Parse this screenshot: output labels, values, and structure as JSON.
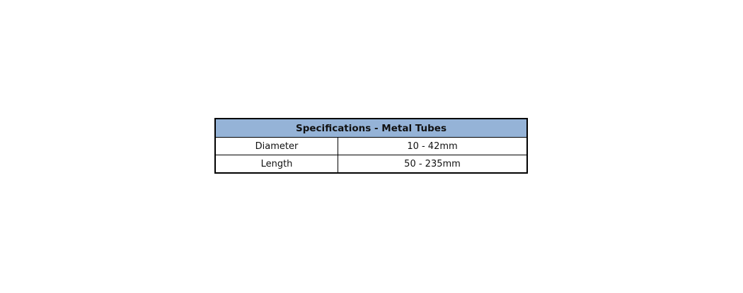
{
  "table": {
    "title": "Specifications - Metal Tubes",
    "header_color": "#95b3d7",
    "rows": [
      {
        "label": "Diameter",
        "value": "10 - 42mm"
      },
      {
        "label": "Length",
        "value": "50 - 235mm"
      }
    ]
  }
}
